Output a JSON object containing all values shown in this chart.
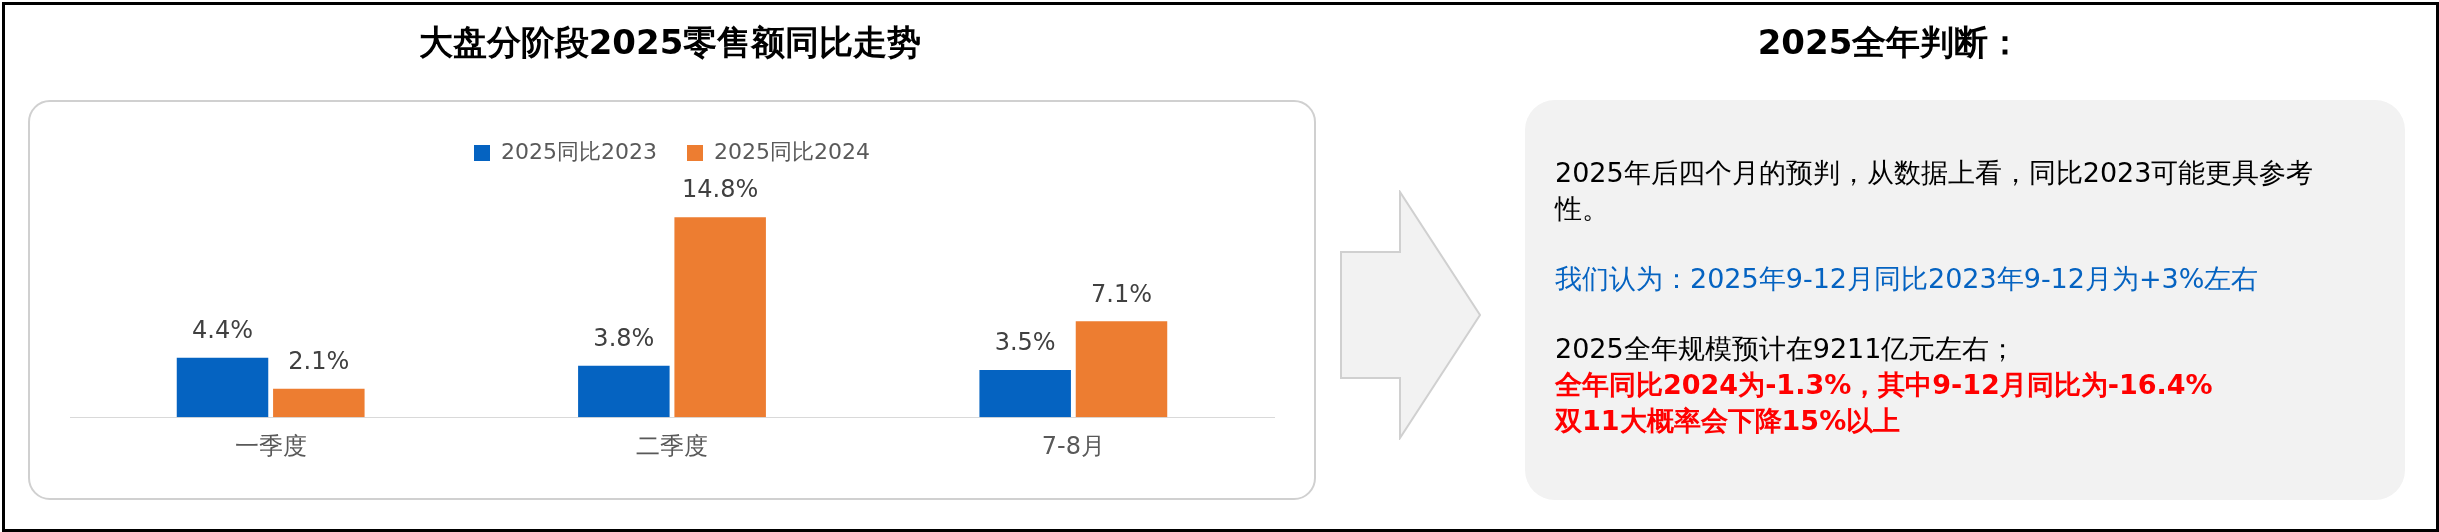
{
  "chart_data": [
    {
      "type": "bar",
      "title": "大盘分阶段2025零售额同比走势",
      "categories": [
        "一季度",
        "二季度",
        "7-8月"
      ],
      "series": [
        {
          "name": "2025同比2023",
          "color": "#0563c1",
          "values": [
            4.4,
            3.8,
            3.5
          ],
          "value_labels": [
            "4.4%",
            "3.8%",
            "3.5%"
          ]
        },
        {
          "name": "2025同比2024",
          "color": "#ed7d31",
          "values": [
            2.1,
            14.8,
            7.1
          ],
          "value_labels": [
            "2.1%",
            "14.8%",
            "7.1%"
          ]
        }
      ],
      "legend": "top",
      "grid": false,
      "tick_labels": "x"
    },
    {
      "type": "other",
      "title": "2025全年判断：",
      "annotations": [
        "2025年后四个月的预判，从数据上看，同比2023可能更具参考性。",
        "我们认为：2025年9-12月同比2023年9-12月为+3%左右",
        "2025全年规模预计在9211亿元左右；",
        "全年同比2024为-1.3%，其中9-12月同比为-16.4%",
        "双11大概率会下降15%以上"
      ]
    }
  ]
}
